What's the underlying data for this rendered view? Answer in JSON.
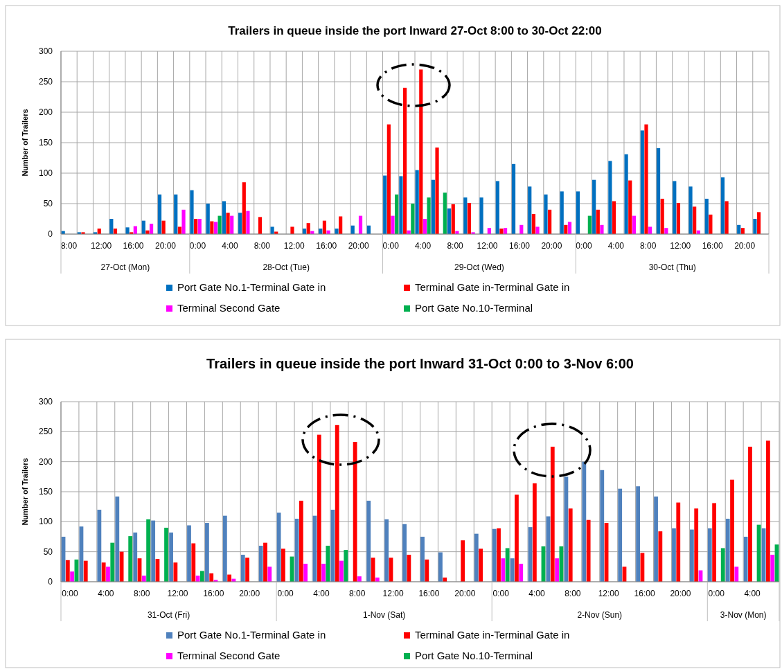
{
  "chart_data": [
    {
      "type": "bar",
      "title": "Trailers in queue inside the port  Inward   27-Oct 8:00 to 30-Oct 22:00",
      "ylabel": "Number of Trailers",
      "categories": [
        "8:00",
        null,
        "12:00",
        null,
        "16:00",
        null,
        "20:00",
        null,
        "0:00",
        null,
        "4:00",
        null,
        "8:00",
        null,
        "12:00",
        null,
        "16:00",
        null,
        "20:00",
        null,
        "0:00",
        null,
        "4:00",
        null,
        "8:00",
        null,
        "12:00",
        null,
        "16:00",
        null,
        "20:00",
        null,
        "0:00",
        null,
        "4:00",
        null,
        "8:00",
        null,
        "12:00",
        null,
        "16:00",
        null,
        "20:00",
        null
      ],
      "annotations": [
        "27-Oct (Mon)",
        "28-Oct (Tue)",
        "29-Oct (Wed)",
        "30-Oct (Thu)"
      ],
      "ylim": [
        0,
        300
      ],
      "yticks": [
        0,
        50,
        100,
        150,
        200,
        250,
        300
      ],
      "grid": true,
      "legend": "bottom",
      "series": [
        {
          "name": "Port Gate No.1-Terminal Gate in",
          "color": "#0070c0",
          "values": [
            5,
            3,
            3,
            25,
            11,
            22,
            65,
            65,
            72,
            50,
            54,
            35,
            null,
            12,
            null,
            9,
            9,
            9,
            14,
            14,
            96,
            95,
            105,
            89,
            42,
            60,
            60,
            87,
            115,
            78,
            65,
            70,
            70,
            89,
            120,
            131,
            170,
            141,
            87,
            78,
            58,
            93,
            15,
            25
          ]
        },
        {
          "name": "Terminal Gate in-Terminal Gate in",
          "color": "#ff0000",
          "values": [
            null,
            3,
            9,
            9,
            3,
            6,
            22,
            12,
            25,
            21,
            35,
            85,
            28,
            4,
            12,
            18,
            22,
            29,
            null,
            null,
            180,
            240,
            270,
            142,
            49,
            51,
            null,
            9,
            null,
            33,
            40,
            15,
            null,
            40,
            54,
            88,
            180,
            58,
            51,
            45,
            32,
            54,
            10,
            36
          ]
        },
        {
          "name": "Terminal Second Gate",
          "color": "#ff00ff",
          "values": [
            null,
            null,
            null,
            null,
            13,
            17,
            null,
            40,
            25,
            20,
            30,
            38,
            null,
            null,
            null,
            5,
            6,
            null,
            30,
            null,
            30,
            6,
            25,
            null,
            5,
            3,
            10,
            10,
            15,
            12,
            null,
            20,
            null,
            15,
            null,
            30,
            12,
            10,
            null,
            6,
            null,
            null,
            null,
            null
          ]
        },
        {
          "name": "Port Gate No.10-Terminal",
          "color": "#00b050",
          "values": [
            null,
            null,
            null,
            null,
            null,
            null,
            null,
            null,
            null,
            30,
            null,
            null,
            null,
            null,
            null,
            null,
            null,
            null,
            null,
            null,
            65,
            50,
            60,
            68,
            null,
            null,
            null,
            null,
            null,
            null,
            null,
            null,
            30,
            null,
            null,
            null,
            null,
            null,
            null,
            null,
            null,
            null,
            null,
            null
          ]
        }
      ]
    },
    {
      "type": "bar",
      "title": "Trailers in queue inside the port  Inward   31-Oct 0:00 to 3-Nov 6:00",
      "ylabel": "Number of Trailers",
      "categories": [
        "0:00",
        null,
        "4:00",
        null,
        "8:00",
        null,
        "12:00",
        null,
        "16:00",
        null,
        "20:00",
        null,
        "0:00",
        null,
        "4:00",
        null,
        "8:00",
        null,
        "12:00",
        null,
        "16:00",
        null,
        "20:00",
        null,
        "0:00",
        null,
        "4:00",
        null,
        "8:00",
        null,
        "12:00",
        null,
        "16:00",
        null,
        "20:00",
        null,
        "0:00",
        null,
        "4:00",
        null
      ],
      "annotations": [
        "31-Oct (Fri)",
        "1-Nov (Sat)",
        "2-Nov (Sun)",
        "3-Nov (Mon)"
      ],
      "ylim": [
        0,
        300
      ],
      "yticks": [
        0,
        50,
        100,
        150,
        200,
        250,
        300
      ],
      "grid": true,
      "legend": "bottom",
      "series": [
        {
          "name": "Port Gate No.1-Terminal Gate in",
          "color": "#4f81bd",
          "values": [
            75,
            92,
            120,
            142,
            82,
            102,
            82,
            94,
            98,
            110,
            45,
            60,
            115,
            105,
            110,
            120,
            null,
            135,
            104,
            96,
            75,
            49,
            null,
            80,
            88,
            39,
            91,
            109,
            175,
            200,
            186,
            155,
            159,
            142,
            89,
            87,
            89,
            105,
            75,
            89
          ]
        },
        {
          "name": "Terminal Gate in-Terminal Gate in",
          "color": "#ff0000",
          "values": [
            36,
            35,
            32,
            50,
            39,
            38,
            32,
            64,
            14,
            12,
            40,
            65,
            55,
            135,
            245,
            261,
            233,
            40,
            40,
            45,
            37,
            7,
            69,
            55,
            89,
            145,
            164,
            225,
            122,
            103,
            98,
            25,
            48,
            84,
            132,
            122,
            131,
            170,
            225,
            235
          ]
        },
        {
          "name": "Terminal Second Gate",
          "color": "#ff00ff",
          "values": [
            17,
            null,
            25,
            null,
            10,
            null,
            null,
            10,
            3,
            5,
            null,
            25,
            null,
            30,
            30,
            35,
            9,
            7,
            null,
            null,
            null,
            null,
            null,
            null,
            39,
            30,
            null,
            39,
            null,
            null,
            null,
            null,
            null,
            null,
            null,
            19,
            null,
            25,
            null,
            45
          ]
        },
        {
          "name": "Port Gate No.10-Terminal",
          "color": "#00b050",
          "values": [
            37,
            null,
            65,
            76,
            104,
            90,
            null,
            18,
            null,
            null,
            null,
            null,
            42,
            null,
            60,
            53,
            null,
            null,
            null,
            null,
            null,
            null,
            null,
            null,
            56,
            null,
            59,
            59,
            null,
            null,
            null,
            null,
            null,
            null,
            null,
            null,
            56,
            null,
            95,
            62
          ]
        }
      ]
    }
  ]
}
